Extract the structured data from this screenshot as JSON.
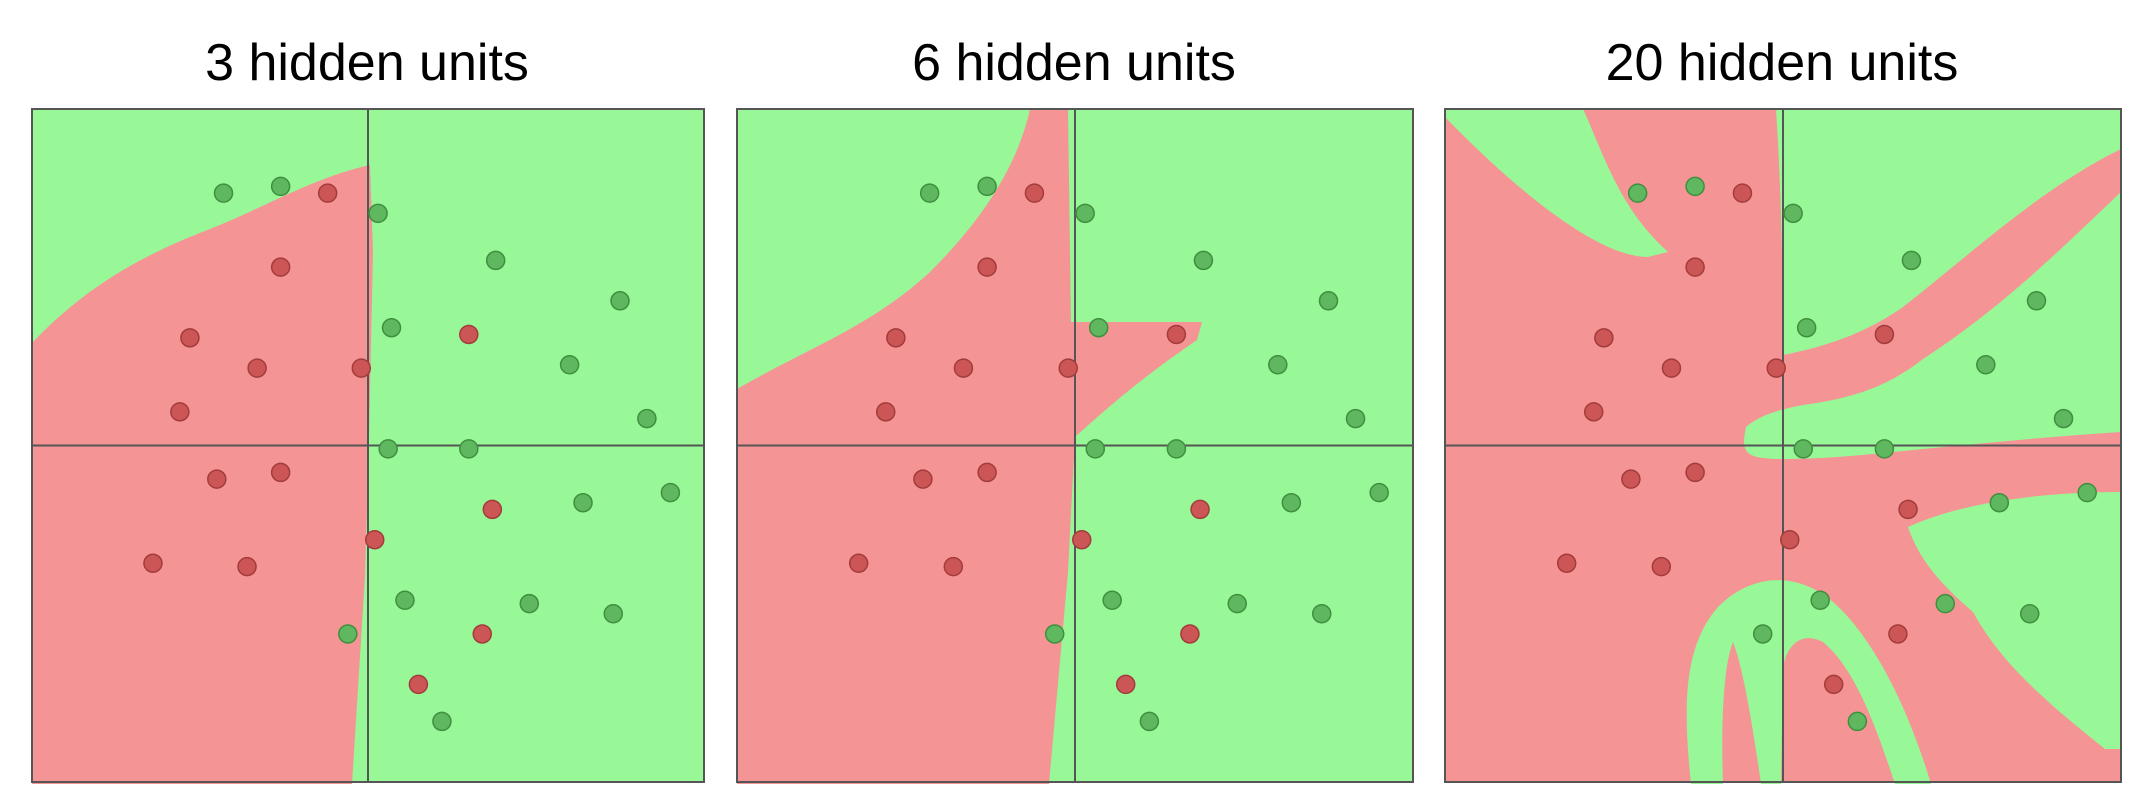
{
  "colors": {
    "red_region": "#f59494",
    "green_region": "#98f898",
    "red_point": "#cc5555",
    "green_point": "#5fb85f",
    "axis": "#555555"
  },
  "panels": [
    {
      "title": "3 hidden units"
    },
    {
      "title": "6 hidden units"
    },
    {
      "title": "20 hidden units"
    }
  ],
  "chart_data": [
    {
      "type": "scatter",
      "title": "3 hidden units",
      "xlim": [
        -1,
        1
      ],
      "ylim": [
        -1,
        1
      ],
      "axes_lines": true,
      "points": [
        {
          "x": -0.43,
          "y": 0.75,
          "class": "green"
        },
        {
          "x": -0.26,
          "y": 0.77,
          "class": "green"
        },
        {
          "x": -0.12,
          "y": 0.75,
          "class": "red"
        },
        {
          "x": 0.03,
          "y": 0.69,
          "class": "green"
        },
        {
          "x": -0.26,
          "y": 0.53,
          "class": "red"
        },
        {
          "x": 0.38,
          "y": 0.55,
          "class": "green"
        },
        {
          "x": 0.75,
          "y": 0.43,
          "class": "green"
        },
        {
          "x": -0.53,
          "y": 0.32,
          "class": "red"
        },
        {
          "x": 0.07,
          "y": 0.35,
          "class": "green"
        },
        {
          "x": 0.3,
          "y": 0.33,
          "class": "red"
        },
        {
          "x": -0.33,
          "y": 0.23,
          "class": "red"
        },
        {
          "x": -0.02,
          "y": 0.23,
          "class": "red"
        },
        {
          "x": 0.6,
          "y": 0.24,
          "class": "green"
        },
        {
          "x": -0.56,
          "y": 0.1,
          "class": "red"
        },
        {
          "x": 0.83,
          "y": 0.08,
          "class": "green"
        },
        {
          "x": 0.06,
          "y": -0.01,
          "class": "green"
        },
        {
          "x": 0.3,
          "y": -0.01,
          "class": "green"
        },
        {
          "x": -0.45,
          "y": -0.1,
          "class": "red"
        },
        {
          "x": -0.26,
          "y": -0.08,
          "class": "red"
        },
        {
          "x": 0.9,
          "y": -0.14,
          "class": "green"
        },
        {
          "x": 0.37,
          "y": -0.19,
          "class": "red"
        },
        {
          "x": 0.64,
          "y": -0.17,
          "class": "green"
        },
        {
          "x": 0.02,
          "y": -0.28,
          "class": "red"
        },
        {
          "x": -0.64,
          "y": -0.35,
          "class": "red"
        },
        {
          "x": -0.36,
          "y": -0.36,
          "class": "red"
        },
        {
          "x": 0.11,
          "y": -0.46,
          "class": "green"
        },
        {
          "x": 0.48,
          "y": -0.47,
          "class": "green"
        },
        {
          "x": 0.73,
          "y": -0.5,
          "class": "green"
        },
        {
          "x": -0.06,
          "y": -0.56,
          "class": "green"
        },
        {
          "x": 0.34,
          "y": -0.56,
          "class": "red"
        },
        {
          "x": 0.15,
          "y": -0.71,
          "class": "red"
        },
        {
          "x": 0.22,
          "y": -0.82,
          "class": "green"
        }
      ]
    },
    {
      "type": "scatter",
      "title": "6 hidden units",
      "xlim": [
        -1,
        1
      ],
      "ylim": [
        -1,
        1
      ],
      "axes_lines": true,
      "points": [
        {
          "x": -0.43,
          "y": 0.75,
          "class": "green"
        },
        {
          "x": -0.26,
          "y": 0.77,
          "class": "green"
        },
        {
          "x": -0.12,
          "y": 0.75,
          "class": "red"
        },
        {
          "x": 0.03,
          "y": 0.69,
          "class": "green"
        },
        {
          "x": -0.26,
          "y": 0.53,
          "class": "red"
        },
        {
          "x": 0.38,
          "y": 0.55,
          "class": "green"
        },
        {
          "x": 0.75,
          "y": 0.43,
          "class": "green"
        },
        {
          "x": -0.53,
          "y": 0.32,
          "class": "red"
        },
        {
          "x": 0.07,
          "y": 0.35,
          "class": "green"
        },
        {
          "x": 0.3,
          "y": 0.33,
          "class": "red"
        },
        {
          "x": -0.33,
          "y": 0.23,
          "class": "red"
        },
        {
          "x": -0.02,
          "y": 0.23,
          "class": "red"
        },
        {
          "x": 0.6,
          "y": 0.24,
          "class": "green"
        },
        {
          "x": -0.56,
          "y": 0.1,
          "class": "red"
        },
        {
          "x": 0.83,
          "y": 0.08,
          "class": "green"
        },
        {
          "x": 0.06,
          "y": -0.01,
          "class": "green"
        },
        {
          "x": 0.3,
          "y": -0.01,
          "class": "green"
        },
        {
          "x": -0.45,
          "y": -0.1,
          "class": "red"
        },
        {
          "x": -0.26,
          "y": -0.08,
          "class": "red"
        },
        {
          "x": 0.9,
          "y": -0.14,
          "class": "green"
        },
        {
          "x": 0.37,
          "y": -0.19,
          "class": "red"
        },
        {
          "x": 0.64,
          "y": -0.17,
          "class": "green"
        },
        {
          "x": 0.02,
          "y": -0.28,
          "class": "red"
        },
        {
          "x": -0.64,
          "y": -0.35,
          "class": "red"
        },
        {
          "x": -0.36,
          "y": -0.36,
          "class": "red"
        },
        {
          "x": 0.11,
          "y": -0.46,
          "class": "green"
        },
        {
          "x": 0.48,
          "y": -0.47,
          "class": "green"
        },
        {
          "x": 0.73,
          "y": -0.5,
          "class": "green"
        },
        {
          "x": -0.06,
          "y": -0.56,
          "class": "green"
        },
        {
          "x": 0.34,
          "y": -0.56,
          "class": "red"
        },
        {
          "x": 0.15,
          "y": -0.71,
          "class": "red"
        },
        {
          "x": 0.22,
          "y": -0.82,
          "class": "green"
        }
      ]
    },
    {
      "type": "scatter",
      "title": "20 hidden units",
      "xlim": [
        -1,
        1
      ],
      "ylim": [
        -1,
        1
      ],
      "axes_lines": true,
      "points": [
        {
          "x": -0.43,
          "y": 0.75,
          "class": "green"
        },
        {
          "x": -0.26,
          "y": 0.77,
          "class": "green"
        },
        {
          "x": -0.12,
          "y": 0.75,
          "class": "red"
        },
        {
          "x": 0.03,
          "y": 0.69,
          "class": "green"
        },
        {
          "x": -0.26,
          "y": 0.53,
          "class": "red"
        },
        {
          "x": 0.38,
          "y": 0.55,
          "class": "green"
        },
        {
          "x": 0.75,
          "y": 0.43,
          "class": "green"
        },
        {
          "x": -0.53,
          "y": 0.32,
          "class": "red"
        },
        {
          "x": 0.07,
          "y": 0.35,
          "class": "green"
        },
        {
          "x": 0.3,
          "y": 0.33,
          "class": "red"
        },
        {
          "x": -0.33,
          "y": 0.23,
          "class": "red"
        },
        {
          "x": -0.02,
          "y": 0.23,
          "class": "red"
        },
        {
          "x": 0.6,
          "y": 0.24,
          "class": "green"
        },
        {
          "x": -0.56,
          "y": 0.1,
          "class": "red"
        },
        {
          "x": 0.83,
          "y": 0.08,
          "class": "green"
        },
        {
          "x": 0.06,
          "y": -0.01,
          "class": "green"
        },
        {
          "x": 0.3,
          "y": -0.01,
          "class": "green"
        },
        {
          "x": -0.45,
          "y": -0.1,
          "class": "red"
        },
        {
          "x": -0.26,
          "y": -0.08,
          "class": "red"
        },
        {
          "x": 0.9,
          "y": -0.14,
          "class": "green"
        },
        {
          "x": 0.37,
          "y": -0.19,
          "class": "red"
        },
        {
          "x": 0.64,
          "y": -0.17,
          "class": "green"
        },
        {
          "x": 0.02,
          "y": -0.28,
          "class": "red"
        },
        {
          "x": -0.64,
          "y": -0.35,
          "class": "red"
        },
        {
          "x": -0.36,
          "y": -0.36,
          "class": "red"
        },
        {
          "x": 0.11,
          "y": -0.46,
          "class": "green"
        },
        {
          "x": 0.48,
          "y": -0.47,
          "class": "green"
        },
        {
          "x": 0.73,
          "y": -0.5,
          "class": "green"
        },
        {
          "x": -0.06,
          "y": -0.56,
          "class": "green"
        },
        {
          "x": 0.34,
          "y": -0.56,
          "class": "red"
        },
        {
          "x": 0.15,
          "y": -0.71,
          "class": "red"
        },
        {
          "x": 0.22,
          "y": -0.82,
          "class": "green"
        }
      ]
    }
  ]
}
